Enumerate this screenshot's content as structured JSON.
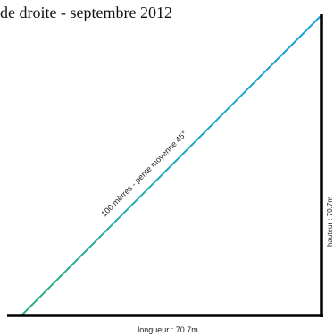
{
  "title": "de droite - septembre 2012",
  "slope_label": "100 mètres - pente moyenne 45°",
  "length_label": "longueur : 70.7m",
  "height_label": "hauteur : 70.7m",
  "colors": {
    "slope_start": "#2fb07a",
    "slope_end": "#1aa0e0",
    "axes": "#000000"
  }
}
